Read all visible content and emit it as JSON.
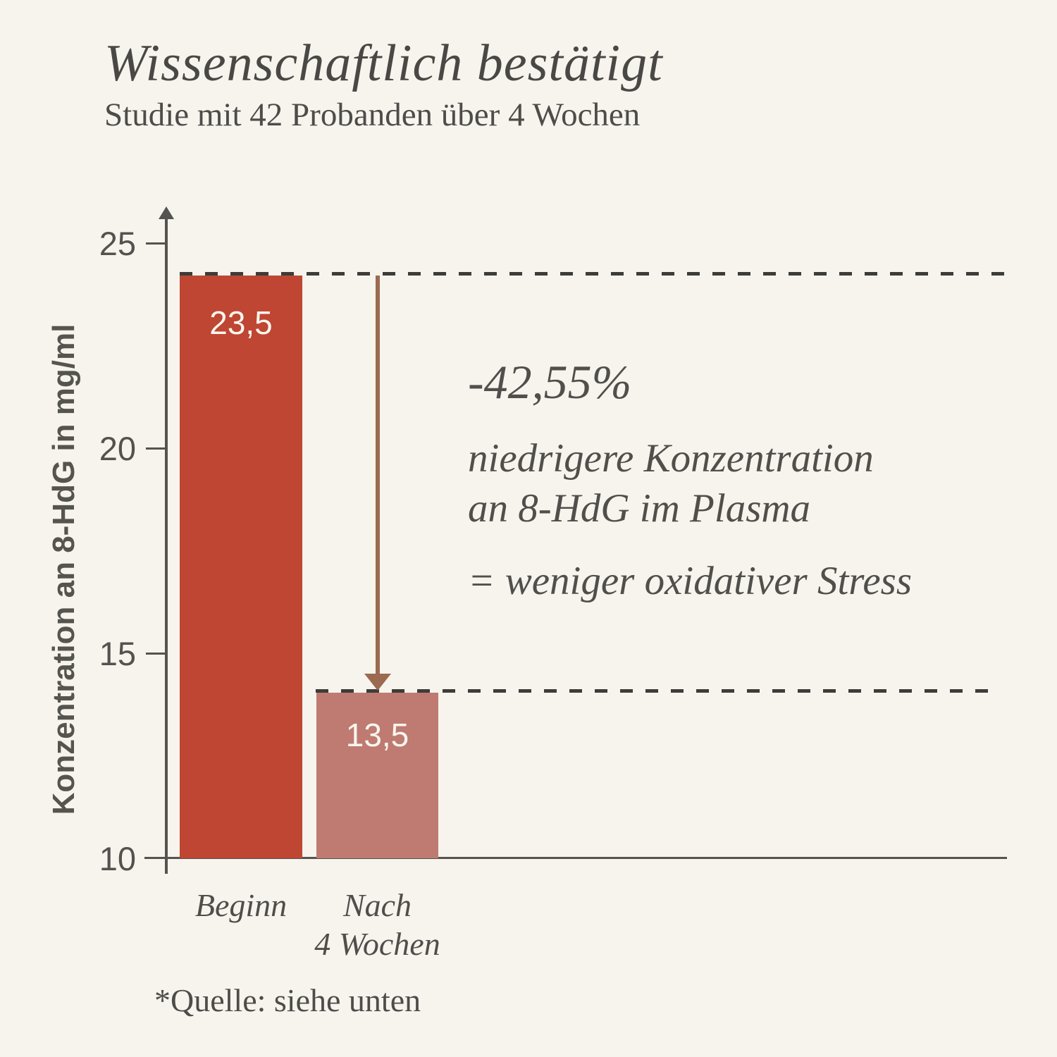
{
  "header": {
    "title": "Wissenschaftlich bestätigt",
    "subtitle": "Studie mit 42 Probanden über 4 Wochen"
  },
  "chart_data": {
    "type": "bar",
    "title": "Wissenschaftlich bestätigt",
    "subtitle": "Studie mit 42 Probanden über 4 Wochen",
    "categories": [
      "Beginn",
      "Nach 4 Wochen"
    ],
    "values": [
      23.5,
      13.5
    ],
    "value_labels": [
      "23,5",
      "13,5"
    ],
    "ylabel": "Konzentration an 8-HdG in mg/ml",
    "xlabel": "",
    "yticks": [
      "25",
      "20",
      "15",
      "10"
    ],
    "ylim": [
      10,
      26
    ],
    "grid": false,
    "legend": false,
    "bar_colors": [
      "#bf4632",
      "#bf7b71"
    ],
    "background_color": "#f6f4ed",
    "arrow_color": "#9c6a50",
    "annotations": [
      "-42,55%",
      "niedrigere Konzentration an 8-HdG im Plasma",
      "= weniger oxidativer Stress"
    ],
    "source": "*Quelle: siehe unten"
  },
  "annotation": {
    "pct": "-42,55%",
    "line1": "niedrigere Konzentration",
    "line2": "an 8-HdG im Plasma",
    "line3": "= weniger oxidativer Stress"
  },
  "xlabels": {
    "cat1": "Beginn",
    "cat2_line1": "Nach",
    "cat2_line2": "4 Wochen"
  },
  "footer": {
    "source": "*Quelle: siehe unten"
  }
}
